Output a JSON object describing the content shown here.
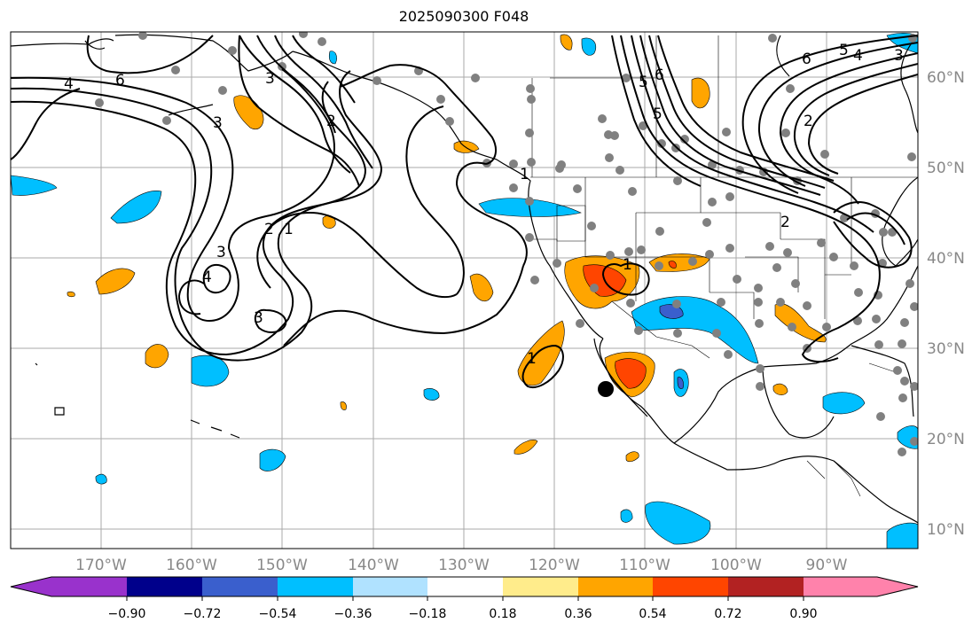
{
  "title": "2025090300 F048",
  "lat_labels": [
    "60°N",
    "50°N",
    "40°N",
    "30°N",
    "20°N",
    "10°N"
  ],
  "lon_labels": [
    "170°W",
    "160°W",
    "150°W",
    "140°W",
    "130°W",
    "120°W",
    "110°W",
    "100°W",
    "90°W"
  ],
  "colorbar": {
    "ticks": [
      "−0.90",
      "−0.72",
      "−0.54",
      "−0.36",
      "−0.18",
      "0.18",
      "0.36",
      "0.54",
      "0.72",
      "0.90"
    ],
    "colors": [
      "#9932cc",
      "#00008b",
      "#3a5fcd",
      "#00bfff",
      "#b0e2ff",
      "#ffffff",
      "#ffec8b",
      "#ffa500",
      "#ff4500",
      "#b22222",
      "#ff82ab"
    ]
  },
  "contour_labels": [
    "4",
    "6",
    "3",
    "2",
    "1",
    "3",
    "4",
    "3",
    "2",
    "1",
    "1",
    "1",
    "6",
    "5",
    "3",
    "5",
    "6",
    "2",
    "2",
    "5",
    "4",
    "3"
  ],
  "colors": {
    "grid": "#aaaaaa",
    "station": "#808080",
    "contour": "#000000",
    "coast": "#000000"
  }
}
